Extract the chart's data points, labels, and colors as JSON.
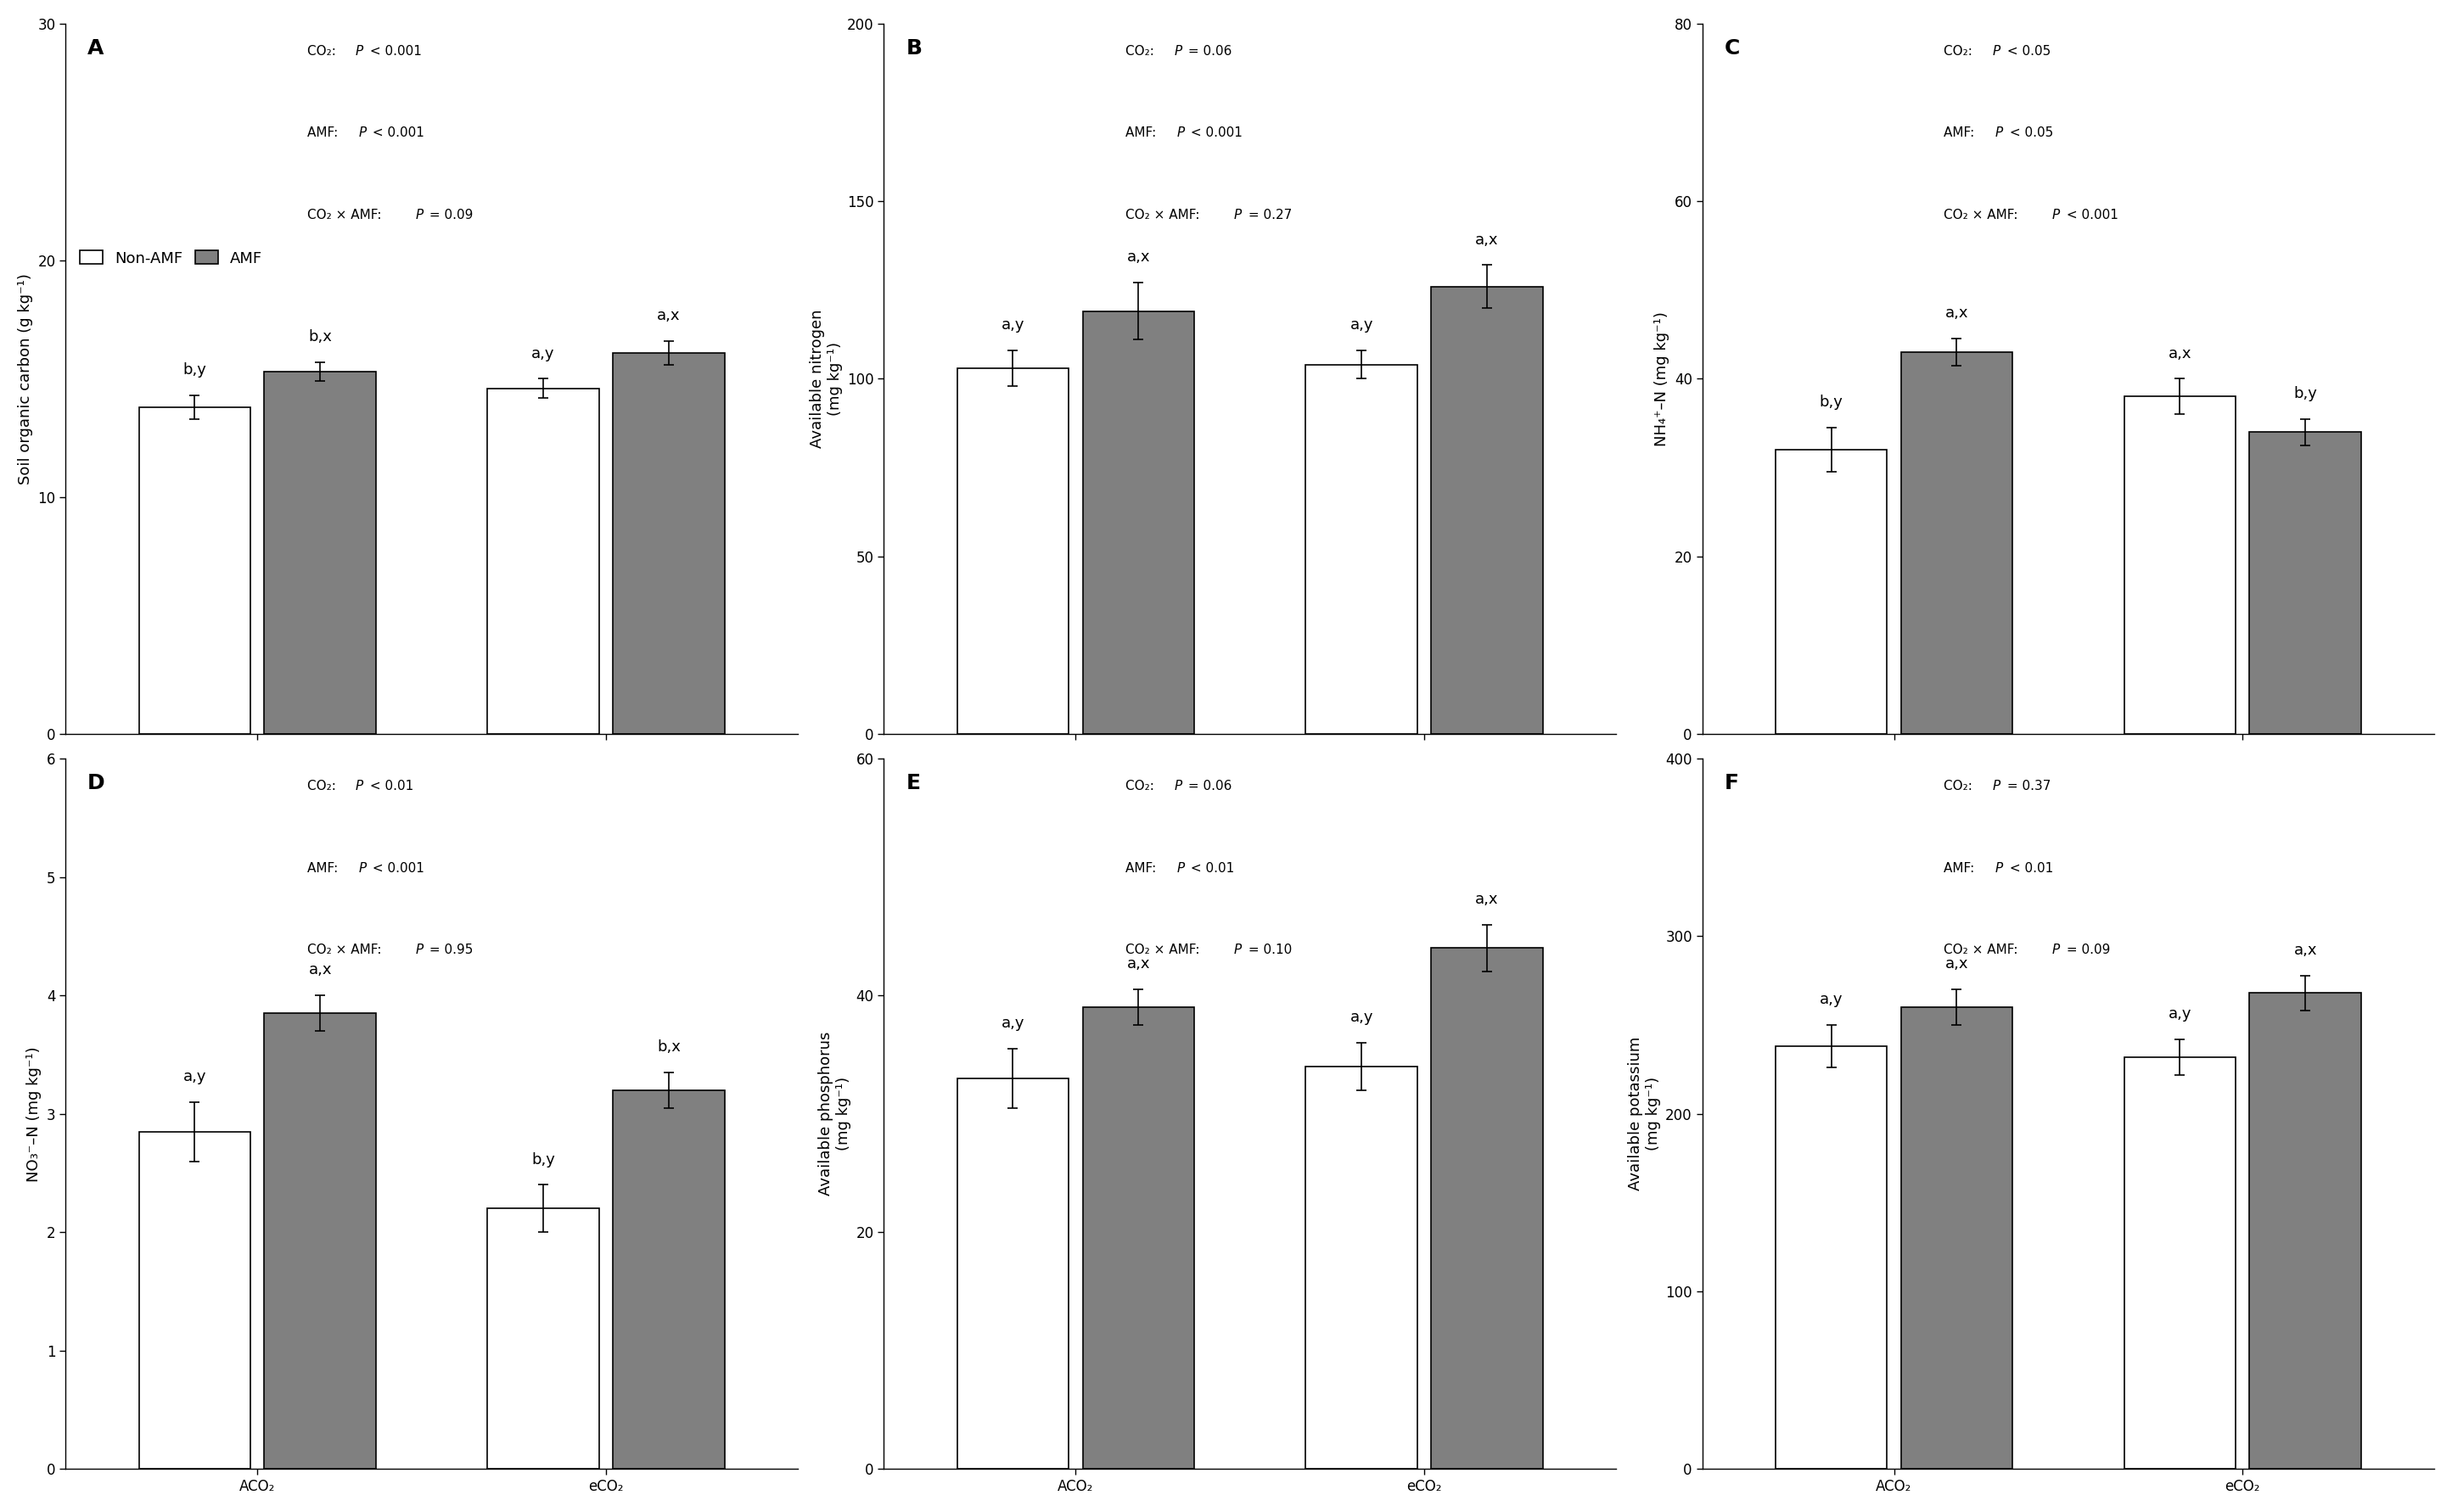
{
  "panels": [
    {
      "label": "A",
      "ylabel": "Soil organic carbon (g kg⁻¹)",
      "ylim": [
        0,
        30
      ],
      "yticks": [
        0,
        10,
        20,
        30
      ],
      "stats_lines": [
        {
          "prefix": "CO₂:  ",
          "p_text": "P",
          "suffix": " < 0.001"
        },
        {
          "prefix": "AMF:  ",
          "p_text": "P",
          "suffix": " < 0.001"
        },
        {
          "prefix": "CO₂ × AMF:  ",
          "p_text": "P",
          "suffix": " = 0.09"
        }
      ],
      "bars": {
        "ACO2_NonAMF": {
          "mean": 13.8,
          "err": 0.5
        },
        "ACO2_AMF": {
          "mean": 15.3,
          "err": 0.4
        },
        "eCO2_NonAMF": {
          "mean": 14.6,
          "err": 0.4
        },
        "eCO2_AMF": {
          "mean": 16.1,
          "err": 0.5
        }
      },
      "bar_labels": [
        "b,y",
        "b,x",
        "a,y",
        "a,x"
      ],
      "show_legend": true
    },
    {
      "label": "B",
      "ylabel": "Available nitrogen\n(mg kg⁻¹)",
      "ylim": [
        0,
        200
      ],
      "yticks": [
        0,
        50,
        100,
        150,
        200
      ],
      "stats_lines": [
        {
          "prefix": "CO₂:  ",
          "p_text": "P",
          "suffix": " = 0.06"
        },
        {
          "prefix": "AMF:  ",
          "p_text": "P",
          "suffix": " < 0.001"
        },
        {
          "prefix": "CO₂ × AMF:  ",
          "p_text": "P",
          "suffix": " = 0.27"
        }
      ],
      "bars": {
        "ACO2_NonAMF": {
          "mean": 103,
          "err": 5
        },
        "ACO2_AMF": {
          "mean": 119,
          "err": 8
        },
        "eCO2_NonAMF": {
          "mean": 104,
          "err": 4
        },
        "eCO2_AMF": {
          "mean": 126,
          "err": 6
        }
      },
      "bar_labels": [
        "a,y",
        "a,x",
        "a,y",
        "a,x"
      ],
      "show_legend": false
    },
    {
      "label": "C",
      "ylabel": "NH₄⁺–N (mg kg⁻¹)",
      "ylim": [
        0,
        80
      ],
      "yticks": [
        0,
        20,
        40,
        60,
        80
      ],
      "stats_lines": [
        {
          "prefix": "CO₂:  ",
          "p_text": "P",
          "suffix": " < 0.05"
        },
        {
          "prefix": "AMF:  ",
          "p_text": "P",
          "suffix": " < 0.05"
        },
        {
          "prefix": "CO₂ × AMF:  ",
          "p_text": "P",
          "suffix": " < 0.001"
        }
      ],
      "bars": {
        "ACO2_NonAMF": {
          "mean": 32,
          "err": 2.5
        },
        "ACO2_AMF": {
          "mean": 43,
          "err": 1.5
        },
        "eCO2_NonAMF": {
          "mean": 38,
          "err": 2.0
        },
        "eCO2_AMF": {
          "mean": 34,
          "err": 1.5
        }
      },
      "bar_labels": [
        "b,y",
        "a,x",
        "a,x",
        "b,y"
      ],
      "show_legend": false
    },
    {
      "label": "D",
      "ylabel": "NO₃⁻–N (mg kg⁻¹)",
      "ylim": [
        0,
        6
      ],
      "yticks": [
        0,
        1,
        2,
        3,
        4,
        5,
        6
      ],
      "stats_lines": [
        {
          "prefix": "CO₂:  ",
          "p_text": "P",
          "suffix": " < 0.01"
        },
        {
          "prefix": "AMF:  ",
          "p_text": "P",
          "suffix": " < 0.001"
        },
        {
          "prefix": "CO₂ × AMF:  ",
          "p_text": "P",
          "suffix": " = 0.95"
        }
      ],
      "bars": {
        "ACO2_NonAMF": {
          "mean": 2.85,
          "err": 0.25
        },
        "ACO2_AMF": {
          "mean": 3.85,
          "err": 0.15
        },
        "eCO2_NonAMF": {
          "mean": 2.2,
          "err": 0.2
        },
        "eCO2_AMF": {
          "mean": 3.2,
          "err": 0.15
        }
      },
      "bar_labels": [
        "a,y",
        "a,x",
        "b,y",
        "b,x"
      ],
      "show_legend": false
    },
    {
      "label": "E",
      "ylabel": "Available phosphorus\n(mg kg⁻¹)",
      "ylim": [
        0,
        60
      ],
      "yticks": [
        0,
        20,
        40,
        60
      ],
      "stats_lines": [
        {
          "prefix": "CO₂:  ",
          "p_text": "P",
          "suffix": " = 0.06"
        },
        {
          "prefix": "AMF:  ",
          "p_text": "P",
          "suffix": " < 0.01"
        },
        {
          "prefix": "CO₂ × AMF:  ",
          "p_text": "P",
          "suffix": " = 0.10"
        }
      ],
      "bars": {
        "ACO2_NonAMF": {
          "mean": 33,
          "err": 2.5
        },
        "ACO2_AMF": {
          "mean": 39,
          "err": 1.5
        },
        "eCO2_NonAMF": {
          "mean": 34,
          "err": 2.0
        },
        "eCO2_AMF": {
          "mean": 44,
          "err": 2.0
        }
      },
      "bar_labels": [
        "a,y",
        "a,x",
        "a,y",
        "a,x"
      ],
      "show_legend": false
    },
    {
      "label": "F",
      "ylabel": "Available potassium\n(mg kg⁻¹)",
      "ylim": [
        0,
        400
      ],
      "yticks": [
        0,
        100,
        200,
        300,
        400
      ],
      "stats_lines": [
        {
          "prefix": "CO₂:  ",
          "p_text": "P",
          "suffix": " = 0.37"
        },
        {
          "prefix": "AMF:  ",
          "p_text": "P",
          "suffix": " < 0.01"
        },
        {
          "prefix": "CO₂ × AMF:  ",
          "p_text": "P",
          "suffix": " = 0.09"
        }
      ],
      "bars": {
        "ACO2_NonAMF": {
          "mean": 238,
          "err": 12
        },
        "ACO2_AMF": {
          "mean": 260,
          "err": 10
        },
        "eCO2_NonAMF": {
          "mean": 232,
          "err": 10
        },
        "eCO2_AMF": {
          "mean": 268,
          "err": 10
        }
      },
      "bar_labels": [
        "a,y",
        "a,x",
        "a,y",
        "a,x"
      ],
      "show_legend": false
    }
  ],
  "bar_colors": {
    "NonAMF": "white",
    "AMF": "#808080"
  },
  "bar_edgecolor": "black",
  "bar_width": 0.32,
  "xtick_labels": [
    "ACO₂",
    "eCO₂"
  ],
  "background_color": "white",
  "fontsize_ylabel": 13,
  "fontsize_tick": 12,
  "fontsize_stats": 11,
  "fontsize_panel_label": 18,
  "fontsize_bar_label": 13,
  "fontsize_legend": 13
}
